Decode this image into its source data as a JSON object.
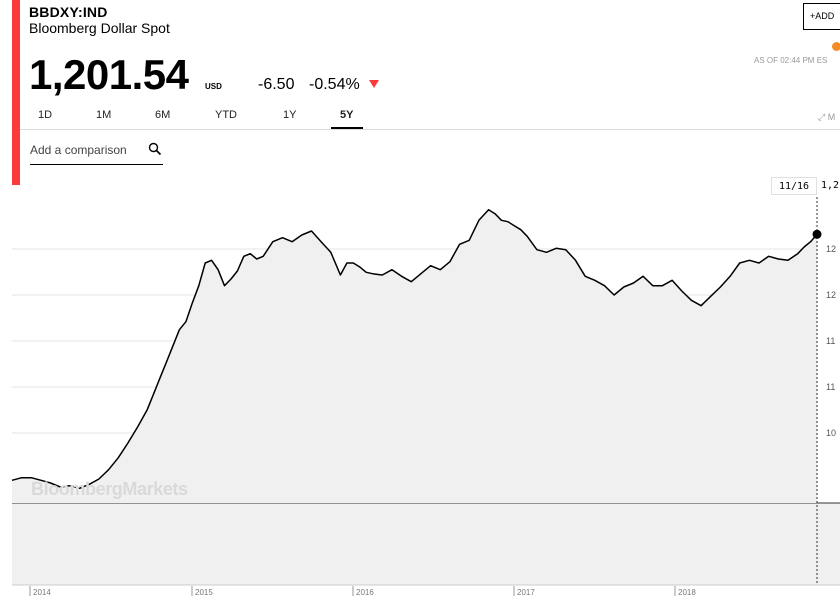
{
  "header": {
    "ticker": "BBDXY:IND",
    "name": "Bloomberg Dollar Spot",
    "price": "1,201.54",
    "currency": "USD",
    "change": "-6.50",
    "change_pct": "-0.54%",
    "add_label": "ADD",
    "as_of": "AS OF 02:44 PM ES",
    "status_color": "#f58c27"
  },
  "tabs": [
    {
      "label": "1D"
    },
    {
      "label": "1M"
    },
    {
      "label": "6M"
    },
    {
      "label": "YTD"
    },
    {
      "label": "1Y"
    },
    {
      "label": "5Y",
      "active": true
    }
  ],
  "extra_icon": "expand-icon",
  "compare": {
    "placeholder": "Add a comparison"
  },
  "tooltip": {
    "date": "11/16",
    "value": "1,2"
  },
  "watermark": "BloombergMarkets",
  "colors": {
    "accent": "#fb3b3b",
    "line": "#000000",
    "area": "#f0f0f0",
    "grid": "#e6e6e6"
  },
  "chart_data": {
    "type": "area",
    "x_ticks": [
      "2014",
      "2015",
      "2016",
      "2017",
      "2018"
    ],
    "y_ticks": [
      "10",
      "11",
      "11",
      "12",
      "12"
    ],
    "ylim": [
      1000,
      1240
    ],
    "grid": true,
    "series": [
      {
        "x": [
          2013.88,
          2013.94,
          2014.0,
          2014.06,
          2014.12,
          2014.18,
          2014.24,
          2014.3,
          2014.36,
          2014.42,
          2014.48,
          2014.54,
          2014.6,
          2014.66,
          2014.72,
          2014.76,
          2014.8,
          2014.84,
          2014.88,
          2014.92,
          2014.96,
          2015.0,
          2015.04,
          2015.08,
          2015.12,
          2015.16,
          2015.2,
          2015.24,
          2015.28,
          2015.32,
          2015.36,
          2015.4,
          2015.44,
          2015.5,
          2015.56,
          2015.62,
          2015.68,
          2015.74,
          2015.8,
          2015.86,
          2015.92,
          2015.96,
          2016.0,
          2016.04,
          2016.08,
          2016.12,
          2016.18,
          2016.24,
          2016.3,
          2016.36,
          2016.42,
          2016.48,
          2016.54,
          2016.6,
          2016.66,
          2016.72,
          2016.78,
          2016.84,
          2016.88,
          2016.92,
          2016.96,
          2017.0,
          2017.04,
          2017.08,
          2017.14,
          2017.2,
          2017.26,
          2017.32,
          2017.38,
          2017.44,
          2017.5,
          2017.56,
          2017.62,
          2017.68,
          2017.74,
          2017.8,
          2017.86,
          2017.92,
          2017.98,
          2018.04,
          2018.1,
          2018.16,
          2018.22,
          2018.28,
          2018.34,
          2018.4,
          2018.46,
          2018.52,
          2018.58,
          2018.64,
          2018.7,
          2018.76,
          2018.8,
          2018.84,
          2018.88
        ],
        "values": [
          1017,
          1019,
          1019,
          1017,
          1015,
          1012,
          1013,
          1011,
          1014,
          1018,
          1025,
          1034,
          1045,
          1057,
          1070,
          1082,
          1094,
          1106,
          1118,
          1130,
          1136,
          1150,
          1163,
          1180,
          1182,
          1175,
          1163,
          1168,
          1174,
          1185,
          1187,
          1183,
          1185,
          1196,
          1199,
          1196,
          1201,
          1204,
          1196,
          1188,
          1171,
          1180,
          1180,
          1177,
          1173,
          1172,
          1171,
          1175,
          1170,
          1166,
          1172,
          1178,
          1175,
          1181,
          1194,
          1197,
          1212,
          1220,
          1217,
          1212,
          1211,
          1208,
          1205,
          1200,
          1190,
          1188,
          1191,
          1190,
          1182,
          1170,
          1167,
          1163,
          1156,
          1162,
          1165,
          1170,
          1163,
          1163,
          1167,
          1159,
          1152,
          1148,
          1155,
          1162,
          1170,
          1180,
          1182,
          1180,
          1185,
          1183,
          1182,
          1187,
          1192,
          1196,
          1201.54
        ]
      }
    ],
    "last_point": {
      "x": 2018.88,
      "y": 1201.54
    }
  }
}
